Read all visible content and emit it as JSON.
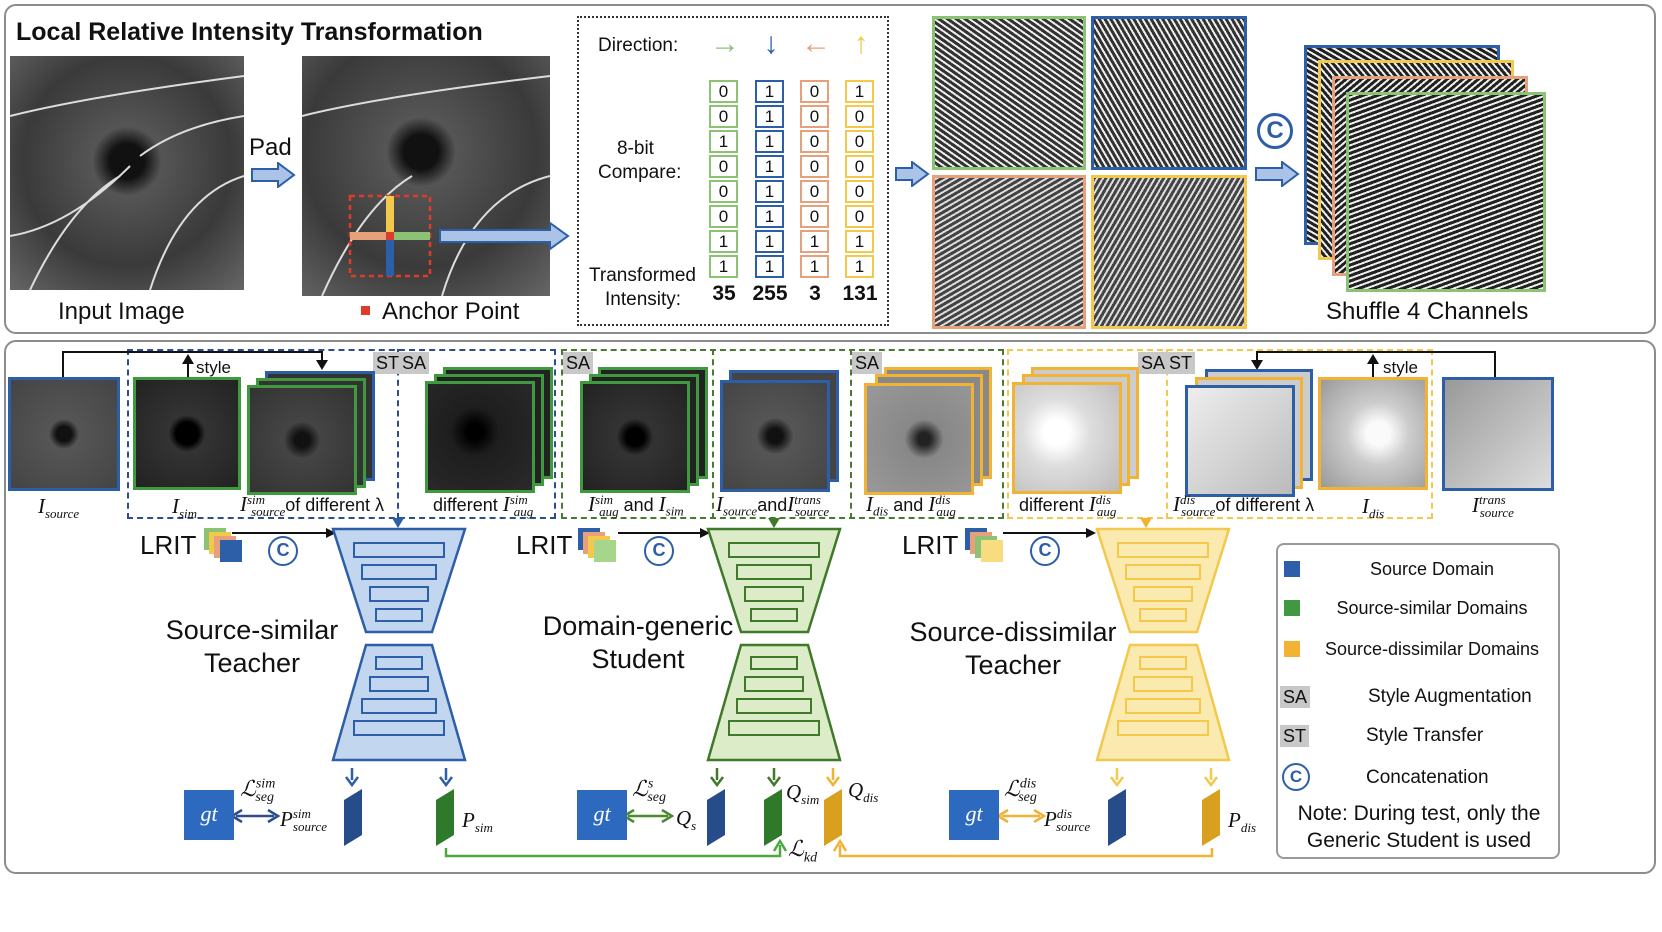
{
  "top": {
    "title": "Local Relative Intensity Transformation",
    "input_caption": "Input Image",
    "pad_label": "Pad",
    "anchor_caption": "Anchor Point",
    "shuffle_caption": "Shuffle 4 Channels",
    "concat_symbol": "C",
    "compare_box": {
      "direction_label": "Direction:",
      "compare_label_1": "8-bit",
      "compare_label_2": "Compare:",
      "transformed_label_1": "Transformed",
      "transformed_label_2": "Intensity:",
      "columns": [
        {
          "bits": [
            "0",
            "0",
            "1",
            "0",
            "0",
            "0",
            "1",
            "1"
          ],
          "value": "35",
          "color": "#8cc274",
          "arrow": "→"
        },
        {
          "bits": [
            "1",
            "1",
            "1",
            "1",
            "1",
            "1",
            "1",
            "1"
          ],
          "value": "255",
          "color": "#2d5ea8",
          "arrow": "↓"
        },
        {
          "bits": [
            "0",
            "0",
            "0",
            "0",
            "0",
            "0",
            "1",
            "1"
          ],
          "value": "3",
          "color": "#e6a07a",
          "arrow": "←"
        },
        {
          "bits": [
            "1",
            "0",
            "0",
            "0",
            "0",
            "0",
            "1",
            "1"
          ],
          "value": "131",
          "color": "#f2c94c",
          "arrow": "↑"
        }
      ]
    }
  },
  "bottom": {
    "tags": {
      "sa": "SA",
      "st": "ST"
    },
    "style_label": "style",
    "lrit": "LRIT",
    "labels": {
      "i_source": "I",
      "i_source_sub": "source",
      "i_sim": "I",
      "i_sim_sub": "sim",
      "of_diff": "of different λ",
      "different": "different",
      "and": "and",
      "i_dis": "I",
      "i_dis_sub": "dis",
      "trans_sup": "trans",
      "sim_sup": "sim",
      "dis_sup": "dis",
      "aug_sub": "aug"
    },
    "teacher_sim": "Source-similar\nTeacher",
    "student": "Domain-generic\nStudent",
    "teacher_dis": "Source-dissimilar\nTeacher",
    "gt": "gt",
    "loss_sim": "ℒ",
    "loss_kd": "ℒ",
    "kd_sub": "kd",
    "seg_sub": "seg",
    "s_sup": "s",
    "p_label": "P",
    "q_label": "Q",
    "q_s_sub": "s",
    "legend": {
      "items": [
        {
          "label": "Source Domain",
          "color": "#2d5ea8"
        },
        {
          "label": "Source-similar Domains",
          "color": "#3f9a3f"
        },
        {
          "label": "Source-dissimilar Domains",
          "color": "#f2b233"
        }
      ],
      "sa": "Style Augmentation",
      "st": "Style Transfer",
      "concat": "Concatenation",
      "note": "Note: During test, only the Generic Student is used"
    }
  },
  "colors": {
    "blue": "#2d5ea8",
    "green": "#3f9a3f",
    "yellow": "#f2b233",
    "orange": "#e6a07a",
    "lightgreen": "#8cc274"
  }
}
